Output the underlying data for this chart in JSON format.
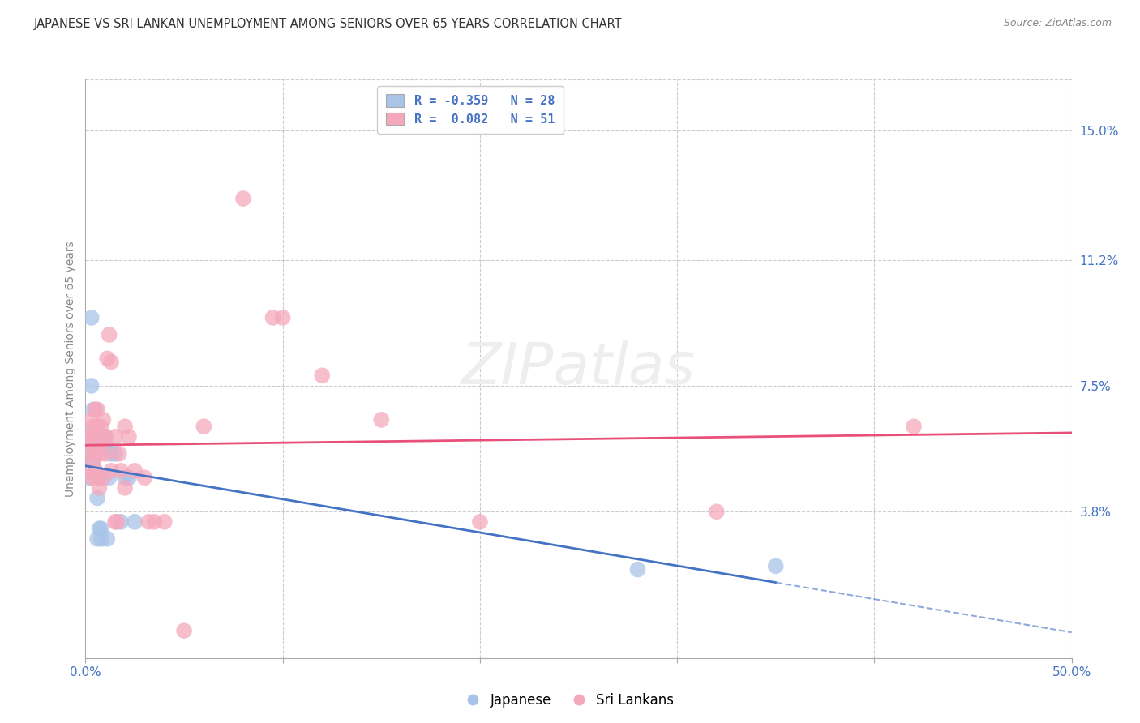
{
  "title": "JAPANESE VS SRI LANKAN UNEMPLOYMENT AMONG SENIORS OVER 65 YEARS CORRELATION CHART",
  "source": "Source: ZipAtlas.com",
  "ylabel": "Unemployment Among Seniors over 65 years",
  "right_ytick_labels": [
    "15.0%",
    "11.2%",
    "7.5%",
    "3.8%"
  ],
  "right_ytick_vals": [
    15.0,
    11.2,
    7.5,
    3.8
  ],
  "xlim": [
    0.0,
    50.0
  ],
  "ylim": [
    -0.5,
    16.5
  ],
  "japanese_color": "#a8c4e8",
  "srilankan_color": "#f5a8bc",
  "trend_japanese_color": "#4472c4",
  "trend_srilankan_color": "#e8507a",
  "background_color": "#ffffff",
  "japanese_points_x": [
    0.1,
    0.2,
    0.2,
    0.3,
    0.3,
    0.4,
    0.4,
    0.5,
    0.5,
    0.6,
    0.6,
    0.7,
    0.7,
    0.8,
    0.8,
    0.9,
    1.0,
    1.0,
    1.1,
    1.2,
    1.3,
    1.5,
    1.8,
    2.0,
    2.2,
    2.5,
    28.0,
    35.0
  ],
  "japanese_points_y": [
    6.1,
    5.5,
    4.8,
    9.5,
    7.5,
    6.8,
    5.3,
    6.0,
    5.0,
    3.0,
    4.2,
    4.8,
    3.3,
    3.3,
    3.0,
    6.0,
    6.0,
    5.8,
    3.0,
    4.8,
    5.5,
    5.5,
    3.5,
    4.8,
    4.8,
    3.5,
    2.1,
    2.2
  ],
  "srilankan_points_x": [
    0.1,
    0.1,
    0.2,
    0.2,
    0.3,
    0.3,
    0.3,
    0.4,
    0.4,
    0.5,
    0.5,
    0.5,
    0.6,
    0.6,
    0.6,
    0.7,
    0.7,
    0.7,
    0.8,
    0.8,
    0.9,
    0.9,
    1.0,
    1.0,
    1.1,
    1.2,
    1.3,
    1.3,
    1.5,
    1.5,
    1.6,
    1.7,
    1.8,
    2.0,
    2.0,
    2.2,
    2.5,
    3.0,
    3.2,
    3.5,
    4.0,
    5.0,
    6.0,
    8.0,
    9.5,
    10.0,
    12.0,
    15.0,
    20.0,
    32.0,
    42.0
  ],
  "srilankan_points_y": [
    5.5,
    5.0,
    6.0,
    5.8,
    6.5,
    6.0,
    4.8,
    6.3,
    5.3,
    6.8,
    5.5,
    5.0,
    6.8,
    6.3,
    4.8,
    5.8,
    5.5,
    4.5,
    6.3,
    6.0,
    6.5,
    4.8,
    6.0,
    5.5,
    8.3,
    9.0,
    8.2,
    5.0,
    6.0,
    3.5,
    3.5,
    5.5,
    5.0,
    6.3,
    4.5,
    6.0,
    5.0,
    4.8,
    3.5,
    3.5,
    3.5,
    0.3,
    6.3,
    13.0,
    9.5,
    9.5,
    7.8,
    6.5,
    3.5,
    3.8,
    6.3
  ]
}
